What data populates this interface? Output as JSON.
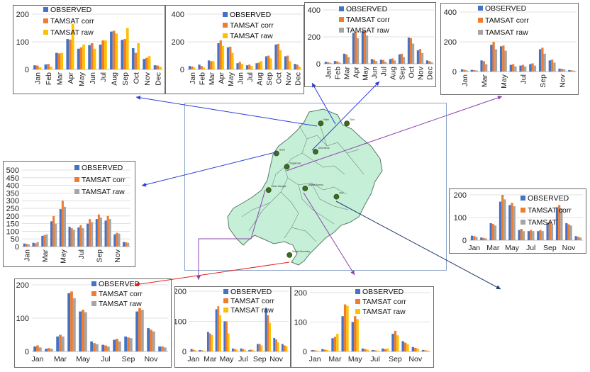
{
  "colors": {
    "observed": "#4472C4",
    "tamsat_corr": "#ED7D31",
    "tamsat_raw_yellow": "#FFC000",
    "tamsat_raw_gray": "#A5A5A5",
    "region_fill": "#C6EFD8",
    "region_stroke": "#5a7a6a",
    "station": "#3d6b1f"
  },
  "charts": [
    {
      "id": "c1",
      "ylim": [
        0,
        200
      ],
      "yticks": [
        "0",
        "100",
        "200"
      ],
      "months": [
        "Jan",
        "Feb",
        "Mar",
        "Apr",
        "May",
        "Jun",
        "Jul",
        "Aug",
        "Sep",
        "Oct",
        "Nov",
        "Dec"
      ],
      "legend": [
        "OBSERVED",
        "TAMSAT corr",
        "TAMSAT raw"
      ],
      "raw_color": "yellow",
      "series": [
        {
          "name": "OBSERVED",
          "values": [
            15,
            18,
            60,
            110,
            75,
            88,
            90,
            137,
            107,
            77,
            38,
            15
          ]
        },
        {
          "name": "TAMSAT corr",
          "values": [
            14,
            20,
            58,
            108,
            80,
            95,
            105,
            140,
            110,
            60,
            42,
            14
          ]
        },
        {
          "name": "TAMSAT raw",
          "values": [
            8,
            10,
            60,
            165,
            90,
            75,
            105,
            130,
            150,
            95,
            48,
            10
          ]
        }
      ]
    },
    {
      "id": "c2",
      "ylim": [
        0,
        400
      ],
      "yticks": [
        "0",
        "200",
        "400"
      ],
      "months": [
        "Jan",
        "Feb",
        "Mar",
        "Apr",
        "May",
        "Jun",
        "Jul",
        "Aug",
        "Sep",
        "Oct",
        "Nov",
        "Dec"
      ],
      "legend": [
        "OBSERVED",
        "TAMSAT corr",
        "TAMSAT raw"
      ],
      "raw_color": "yellow",
      "series": [
        {
          "name": "OBSERVED",
          "values": [
            25,
            35,
            65,
            190,
            160,
            45,
            30,
            45,
            95,
            180,
            95,
            40
          ]
        },
        {
          "name": "TAMSAT corr",
          "values": [
            22,
            25,
            60,
            210,
            165,
            55,
            35,
            50,
            100,
            185,
            100,
            35
          ]
        },
        {
          "name": "TAMSAT raw",
          "values": [
            15,
            15,
            60,
            170,
            120,
            40,
            25,
            60,
            80,
            140,
            60,
            20
          ]
        }
      ]
    },
    {
      "id": "c3",
      "ylim": [
        0,
        400
      ],
      "yticks": [
        "0",
        "200",
        "400"
      ],
      "months": [
        "Jan",
        "Feb",
        "Mar",
        "Apr",
        "May",
        "Jun",
        "Jul",
        "Aug",
        "Sep",
        "Oct",
        "Nov",
        "Dec"
      ],
      "legend": [
        "OBSERVED",
        "TAMSAT corr",
        "TAMSAT raw"
      ],
      "raw_color": "gray",
      "series": [
        {
          "name": "OBSERVED",
          "values": [
            15,
            20,
            75,
            230,
            245,
            35,
            30,
            35,
            70,
            195,
            100,
            25
          ]
        },
        {
          "name": "TAMSAT corr",
          "values": [
            12,
            18,
            70,
            235,
            250,
            30,
            28,
            40,
            75,
            190,
            110,
            20
          ]
        },
        {
          "name": "TAMSAT raw",
          "values": [
            8,
            10,
            50,
            190,
            210,
            20,
            15,
            25,
            50,
            150,
            80,
            12
          ]
        }
      ]
    },
    {
      "id": "c4",
      "ylim": [
        0,
        400
      ],
      "yticks": [
        "0",
        "200",
        "400"
      ],
      "months": [
        "Jan",
        "Feb",
        "Mar",
        "Apr",
        "May",
        "Jun",
        "Jul",
        "Aug",
        "Sep",
        "Oct",
        "Nov",
        "Dec"
      ],
      "xlabels": [
        "Jan",
        "",
        "Mar",
        "",
        "May",
        "",
        "Jul",
        "",
        "Sep",
        "",
        "Nov",
        ""
      ],
      "legend": [
        "OBSERVED",
        "TAMSAT corr",
        "TAMSAT raw"
      ],
      "raw_color": "gray",
      "series": [
        {
          "name": "OBSERVED",
          "values": [
            15,
            12,
            75,
            180,
            170,
            45,
            40,
            50,
            150,
            75,
            20,
            10
          ]
        },
        {
          "name": "TAMSAT corr",
          "values": [
            12,
            10,
            70,
            200,
            175,
            50,
            45,
            55,
            160,
            80,
            18,
            8
          ]
        },
        {
          "name": "TAMSAT raw",
          "values": [
            8,
            8,
            50,
            150,
            140,
            35,
            35,
            40,
            120,
            60,
            15,
            6
          ]
        }
      ]
    },
    {
      "id": "c5",
      "ylim": [
        0,
        500
      ],
      "yticks": [
        "0",
        "50",
        "100",
        "150",
        "200",
        "250",
        "300",
        "350",
        "400",
        "450",
        "500"
      ],
      "months": [
        "Jan",
        "Feb",
        "Mar",
        "Apr",
        "May",
        "Jun",
        "Jul",
        "Aug",
        "Sep",
        "Oct",
        "Nov",
        "Dec"
      ],
      "xlabels": [
        "Jan",
        "",
        "Mar",
        "",
        "May",
        "",
        "Jul",
        "",
        "Sep",
        "",
        "Nov",
        ""
      ],
      "legend": [
        "OBSERVED",
        "TAMSAT corr",
        "TAMSAT raw"
      ],
      "raw_color": "gray",
      "series": [
        {
          "name": "OBSERVED",
          "values": [
            20,
            25,
            70,
            165,
            245,
            130,
            125,
            150,
            180,
            170,
            80,
            30
          ]
        },
        {
          "name": "TAMSAT corr",
          "values": [
            18,
            22,
            75,
            200,
            300,
            120,
            140,
            180,
            210,
            200,
            90,
            28
          ]
        },
        {
          "name": "TAMSAT raw",
          "values": [
            15,
            30,
            80,
            150,
            260,
            110,
            120,
            160,
            190,
            180,
            85,
            25
          ]
        }
      ]
    },
    {
      "id": "c6",
      "ylim": [
        0,
        200
      ],
      "yticks": [
        "0",
        "100",
        "200"
      ],
      "months": [
        "Jan",
        "Feb",
        "Mar",
        "Apr",
        "May",
        "Jun",
        "Jul",
        "Aug",
        "Sep",
        "Oct",
        "Nov",
        "Dec"
      ],
      "xlabels": [
        "Jan",
        "",
        "Mar",
        "",
        "May",
        "",
        "Jul",
        "",
        "Sep",
        "",
        "Nov",
        ""
      ],
      "legend": [
        "OBSERVED",
        "TAMSAT corr",
        "TAMSAT"
      ],
      "raw_color": "gray",
      "series": [
        {
          "name": "OBSERVED",
          "values": [
            20,
            12,
            75,
            170,
            155,
            45,
            40,
            40,
            75,
            145,
            75,
            18
          ]
        },
        {
          "name": "TAMSAT corr",
          "values": [
            18,
            10,
            72,
            200,
            165,
            50,
            45,
            45,
            80,
            155,
            70,
            15
          ]
        },
        {
          "name": "TAMSAT",
          "values": [
            15,
            8,
            65,
            180,
            150,
            40,
            40,
            40,
            70,
            140,
            65,
            12
          ]
        }
      ]
    },
    {
      "id": "c7",
      "ylim": [
        0,
        200
      ],
      "yticks": [
        "0",
        "100",
        "200"
      ],
      "months": [
        "Jan",
        "Feb",
        "Mar",
        "Apr",
        "May",
        "Jun",
        "Jul",
        "Aug",
        "Sep",
        "Oct",
        "Nov",
        "Dec"
      ],
      "xlabels": [
        "Jan",
        "",
        "Mar",
        "",
        "May",
        "",
        "Jul",
        "",
        "Sep",
        "",
        "Nov",
        ""
      ],
      "legend": [
        "OBSERVED",
        "TAMSAT corr",
        "TAMSAT raw"
      ],
      "raw_color": "gray",
      "series": [
        {
          "name": "OBSERVED",
          "values": [
            15,
            8,
            45,
            175,
            120,
            30,
            20,
            35,
            45,
            120,
            70,
            15
          ]
        },
        {
          "name": "TAMSAT corr",
          "values": [
            18,
            10,
            50,
            180,
            125,
            25,
            18,
            38,
            42,
            130,
            65,
            15
          ]
        },
        {
          "name": "TAMSAT raw",
          "values": [
            12,
            8,
            45,
            160,
            118,
            22,
            15,
            30,
            40,
            125,
            60,
            12
          ]
        }
      ]
    },
    {
      "id": "c8",
      "ylim": [
        0,
        200
      ],
      "yticks": [
        "0",
        "100",
        "200"
      ],
      "months": [
        "Jan",
        "Feb",
        "Mar",
        "Apr",
        "May",
        "Jun",
        "Jul",
        "Aug",
        "Sep",
        "Oct",
        "Nov",
        "Dec"
      ],
      "xlabels": [
        "Jan",
        "",
        "Mar",
        "",
        "May",
        "",
        "Jul",
        "",
        "Sep",
        "",
        "Nov",
        ""
      ],
      "legend": [
        "OBSERVED",
        "TAMSAT corr",
        "TAMSAT raw"
      ],
      "raw_color": "yellow",
      "series": [
        {
          "name": "OBSERVED",
          "values": [
            8,
            5,
            65,
            140,
            100,
            10,
            10,
            5,
            25,
            145,
            45,
            25
          ]
        },
        {
          "name": "TAMSAT corr",
          "values": [
            6,
            4,
            60,
            150,
            100,
            8,
            8,
            6,
            25,
            120,
            40,
            20
          ]
        },
        {
          "name": "TAMSAT raw",
          "values": [
            4,
            3,
            55,
            120,
            60,
            6,
            5,
            4,
            20,
            95,
            30,
            18
          ]
        }
      ]
    },
    {
      "id": "c9",
      "ylim": [
        0,
        200
      ],
      "yticks": [
        "0",
        "100",
        "200"
      ],
      "months": [
        "Jan",
        "Feb",
        "Mar",
        "Apr",
        "May",
        "Jun",
        "Jul",
        "Aug",
        "Sep",
        "Oct",
        "Nov",
        "Dec"
      ],
      "xlabels": [
        "Jan",
        "",
        "Mar",
        "",
        "May",
        "",
        "Jul",
        "",
        "Sep",
        "",
        "Nov",
        ""
      ],
      "legend": [
        "OBSERVED",
        "TAMSAT corr",
        "TAMSAT raw"
      ],
      "raw_color": "yellow",
      "series": [
        {
          "name": "OBSERVED",
          "values": [
            5,
            8,
            45,
            120,
            100,
            10,
            5,
            10,
            60,
            35,
            15,
            5
          ]
        },
        {
          "name": "TAMSAT corr",
          "values": [
            4,
            6,
            50,
            160,
            120,
            8,
            4,
            8,
            70,
            30,
            12,
            4
          ]
        },
        {
          "name": "TAMSAT raw",
          "values": [
            3,
            5,
            60,
            155,
            110,
            6,
            3,
            10,
            55,
            25,
            10,
            3
          ]
        }
      ]
    }
  ],
  "map": {
    "stations": [
      {
        "name": "Robe",
        "lx": 0.52,
        "ly": 0.12
      },
      {
        "name": "Ginir",
        "lx": 0.62,
        "ly": 0.12
      },
      {
        "name": "Goba",
        "lx": 0.35,
        "ly": 0.3
      },
      {
        "name": "Delo Mena",
        "lx": 0.5,
        "ly": 0.29
      },
      {
        "name": "Magamulla",
        "lx": 0.39,
        "ly": 0.38
      },
      {
        "name": "Kebre Mengist",
        "lx": 0.32,
        "ly": 0.52
      },
      {
        "name": "Negele Borena",
        "lx": 0.46,
        "ly": 0.51
      },
      {
        "name": "Filtu",
        "lx": 0.58,
        "ly": 0.56
      },
      {
        "name": "Moyale Boundary",
        "lx": 0.4,
        "ly": 0.91
      }
    ]
  }
}
